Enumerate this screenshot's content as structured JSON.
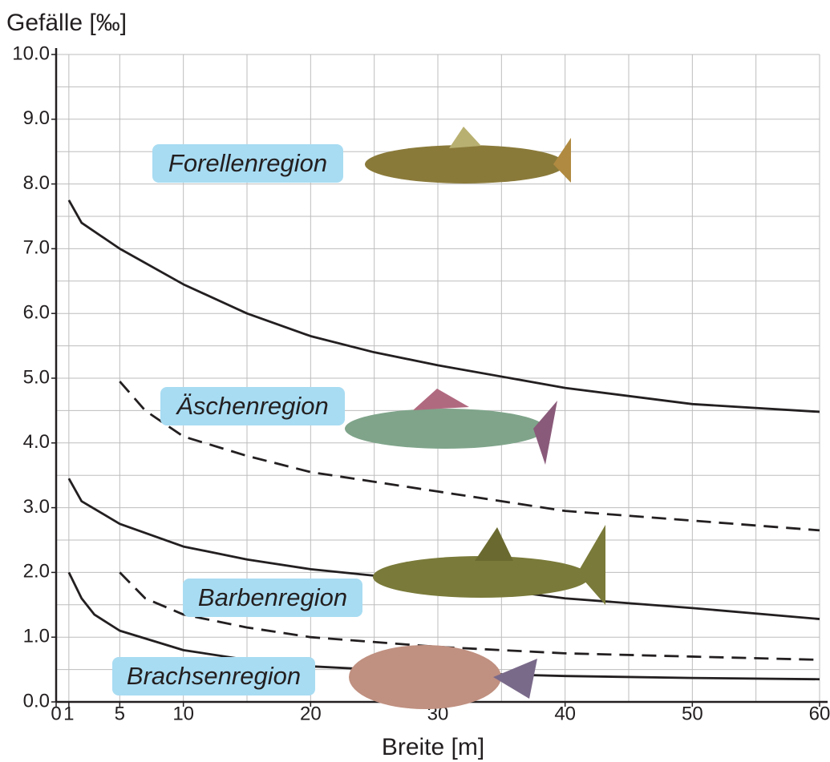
{
  "chart_data": {
    "type": "line",
    "y_label": "Gefälle [‰]",
    "x_label": "Breite [m]",
    "xlim": [
      0,
      60
    ],
    "ylim": [
      0,
      10
    ],
    "xticks": [
      0,
      1,
      5,
      10,
      20,
      30,
      40,
      50,
      60
    ],
    "xminor": [
      15,
      25,
      35,
      45,
      55
    ],
    "yticks": [
      {
        "value": 0,
        "label": "0.0"
      },
      {
        "value": 1,
        "label": "1.0"
      },
      {
        "value": 2,
        "label": "2.0"
      },
      {
        "value": 3,
        "label": "3.0"
      },
      {
        "value": 4,
        "label": "4.0"
      },
      {
        "value": 5,
        "label": "5.0"
      },
      {
        "value": 6,
        "label": "6.0"
      },
      {
        "value": 7,
        "label": "7.0"
      },
      {
        "value": 8,
        "label": "8.0"
      },
      {
        "value": 9,
        "label": "9.0"
      },
      {
        "value": 10,
        "label": "10.0"
      }
    ],
    "yminor": [
      0.5,
      1.5,
      2.5,
      3.5,
      4.5,
      5.5,
      6.5,
      7.5,
      8.5,
      9.5
    ],
    "grid": true,
    "series": [
      {
        "color": "#231f20",
        "dash": false,
        "x": [
          1,
          2,
          5,
          10,
          15,
          20,
          25,
          30,
          40,
          50,
          60
        ],
        "values": [
          7.75,
          7.4,
          7.0,
          6.45,
          6.0,
          5.65,
          5.4,
          5.2,
          4.85,
          4.6,
          4.48
        ]
      },
      {
        "color": "#231f20",
        "dash": true,
        "x": [
          5,
          7,
          10,
          15,
          20,
          30,
          40,
          50,
          60
        ],
        "values": [
          4.95,
          4.5,
          4.1,
          3.8,
          3.55,
          3.25,
          2.95,
          2.8,
          2.65
        ]
      },
      {
        "color": "#231f20",
        "dash": false,
        "x": [
          1,
          2,
          5,
          10,
          15,
          20,
          30,
          40,
          50,
          60
        ],
        "values": [
          3.45,
          3.1,
          2.75,
          2.4,
          2.2,
          2.05,
          1.85,
          1.6,
          1.45,
          1.28
        ]
      },
      {
        "color": "#231f20",
        "dash": true,
        "x": [
          5,
          7,
          10,
          15,
          20,
          30,
          40,
          50,
          60
        ],
        "values": [
          2.0,
          1.6,
          1.35,
          1.15,
          1.0,
          0.85,
          0.75,
          0.7,
          0.65
        ]
      },
      {
        "color": "#231f20",
        "dash": false,
        "x": [
          1,
          2,
          3,
          5,
          10,
          15,
          20,
          30,
          40,
          50,
          60
        ],
        "values": [
          2.0,
          1.6,
          1.35,
          1.1,
          0.8,
          0.65,
          0.55,
          0.45,
          0.4,
          0.37,
          0.35
        ]
      }
    ],
    "annotations": [
      {
        "text": "Forellenregion"
      },
      {
        "text": "Äschenregion"
      },
      {
        "text": "Barbenregion"
      },
      {
        "text": "Brachsenregion"
      }
    ],
    "annotation_color": "#a8dcf2"
  }
}
